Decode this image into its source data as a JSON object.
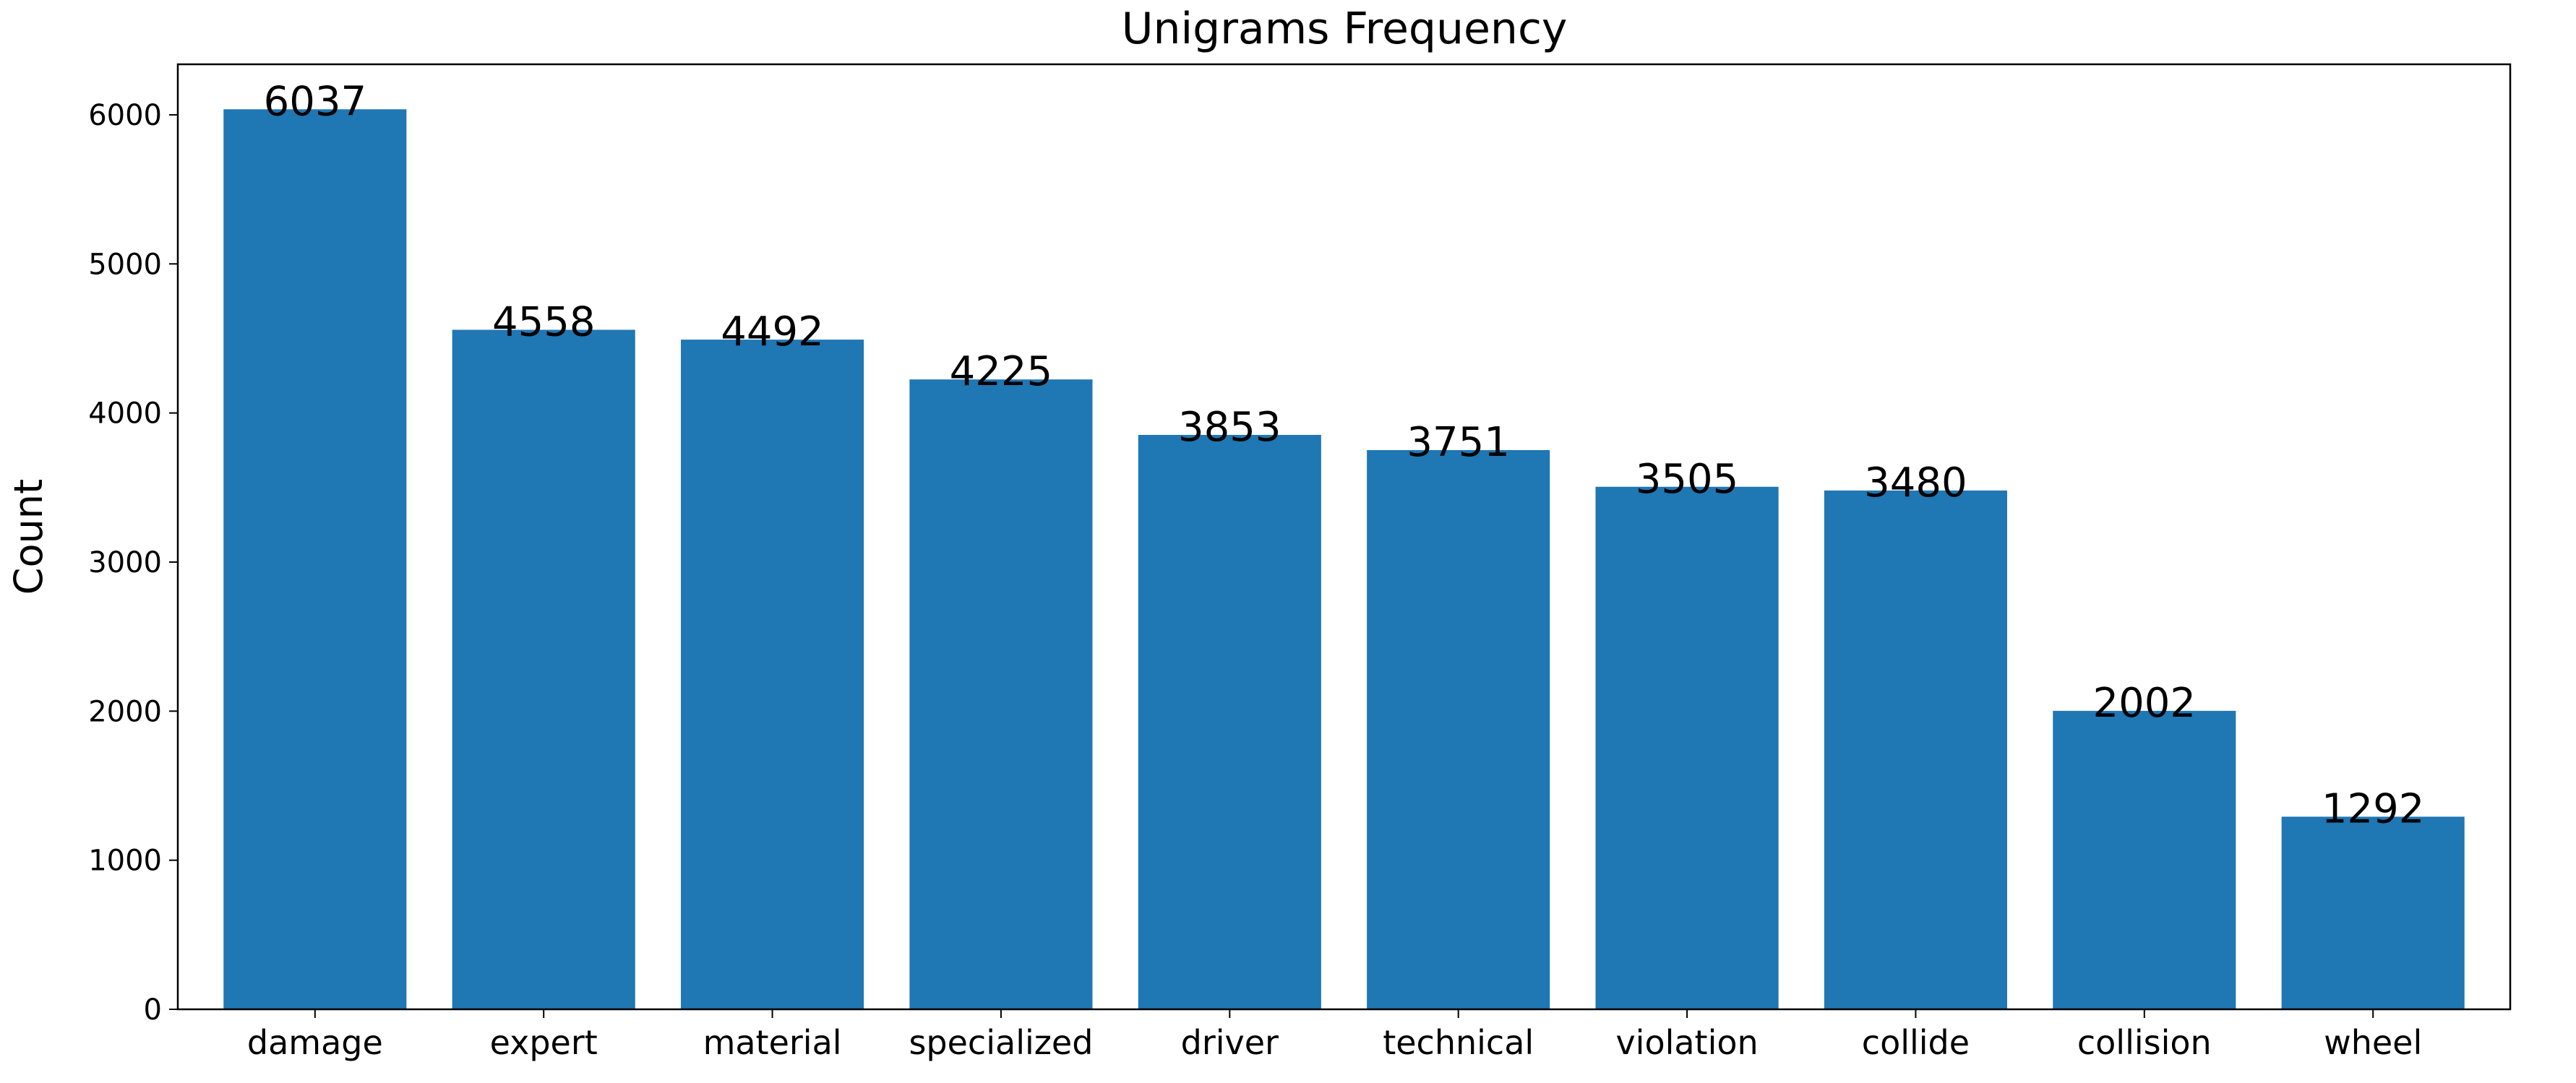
{
  "chart_data": {
    "type": "bar",
    "title": "Unigrams Frequency",
    "y_label": "Count",
    "categories": [
      "damage",
      "expert",
      "material",
      "specialized",
      "driver",
      "technical",
      "violation",
      "collide",
      "collision",
      "wheel"
    ],
    "values": [
      6037,
      4558,
      4492,
      4225,
      3853,
      3751,
      3505,
      3480,
      2002,
      1292
    ],
    "color": "#1f77b4",
    "ylim": [
      0,
      6338.85
    ],
    "yticks": [
      0,
      1000,
      2000,
      3000,
      4000,
      5000,
      6000
    ],
    "grid": false
  }
}
